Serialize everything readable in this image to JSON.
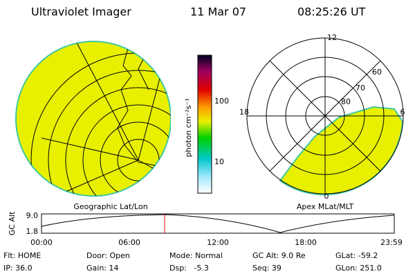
{
  "header": {
    "title": "Ultraviolet Imager",
    "date": "11 Mar 07",
    "time": "08:25:26 UT"
  },
  "left_panel": {
    "label": "Geographic Lat/Lon"
  },
  "color_bar": {
    "label": "photon cm⁻²s⁻¹",
    "ticks": [
      "100",
      "10"
    ]
  },
  "polar_panel": {
    "label": "Apex MLat/MLT",
    "mlt_labels": [
      "12",
      "6",
      "0",
      "18"
    ],
    "lat_labels": [
      "60",
      "70",
      "80"
    ]
  },
  "alt_plot": {
    "y_label": "GC Alt",
    "y_labels": [
      "9.0",
      "1.8"
    ],
    "x_labels": [
      "00:00",
      "06:00",
      "12:00",
      "18:00",
      "23:59"
    ]
  },
  "status": {
    "rows": [
      [
        "Flt: HOME",
        "Door: Open",
        "Mode: Normal",
        "GC Alt: 9.0 Re",
        "GLat: -59.2"
      ],
      [
        "IP: 36.0",
        "Gain: 14",
        "Dsp:   -5.3",
        "Seq: 39",
        "GLon: 251.0"
      ]
    ]
  }
}
